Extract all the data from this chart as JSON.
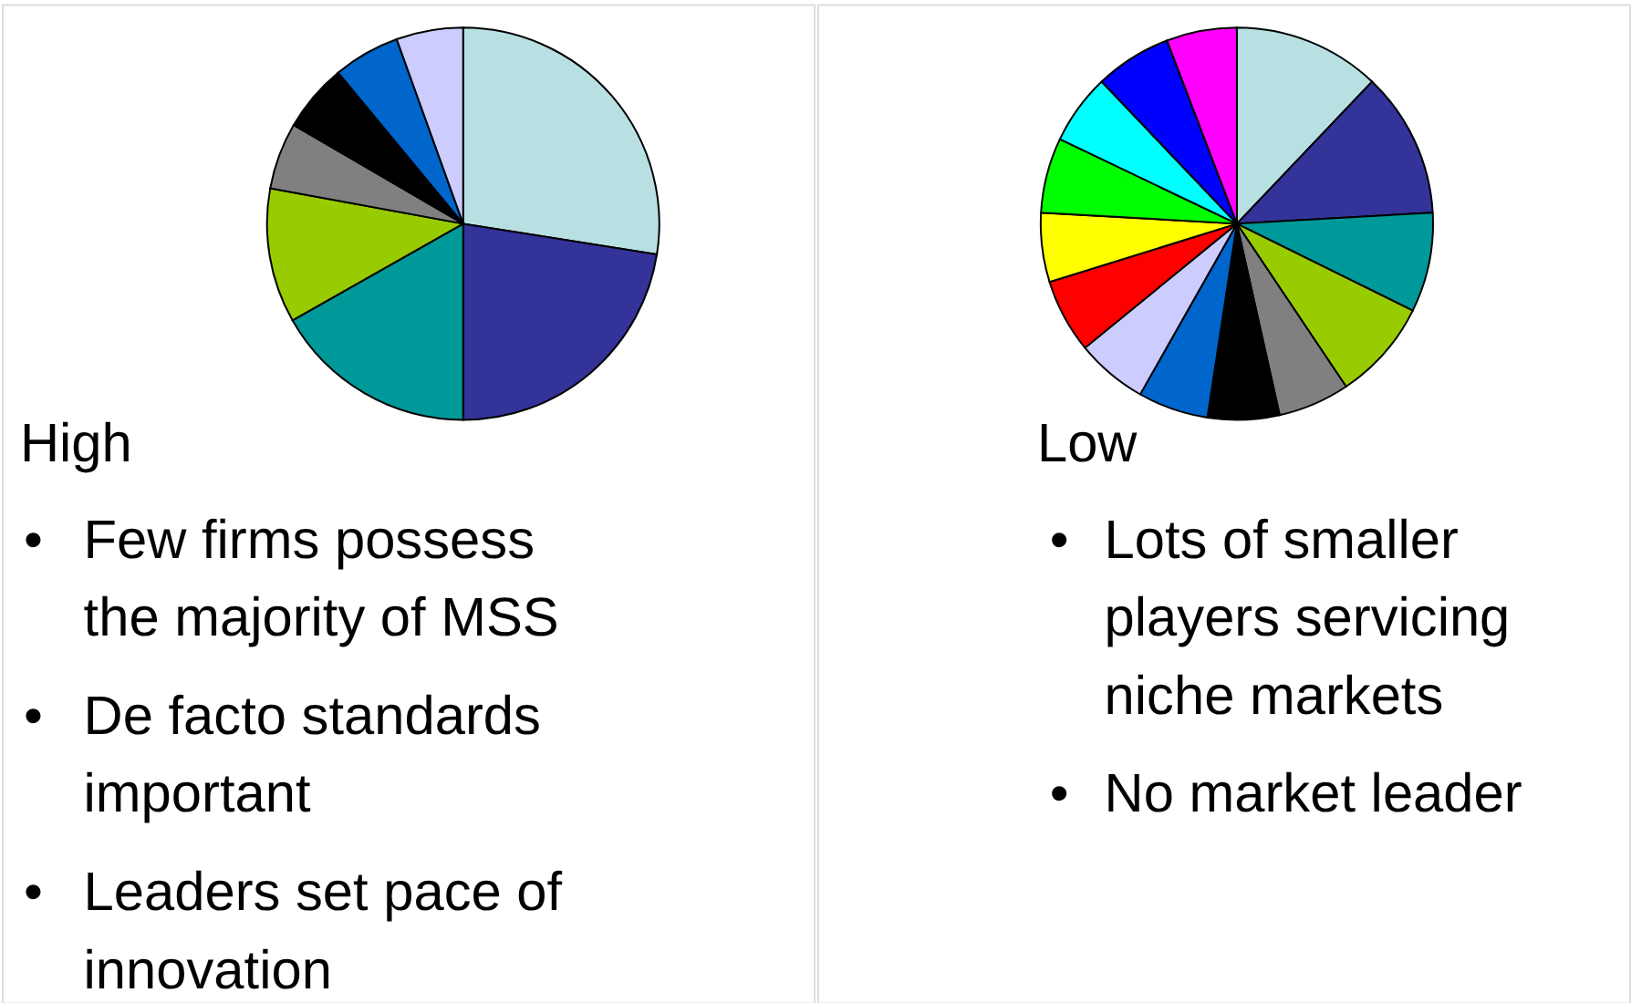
{
  "chart_data": [
    {
      "type": "pie",
      "title": "High",
      "categories": [
        null,
        null,
        null,
        null,
        null,
        null,
        null,
        null
      ],
      "values": [
        27.5,
        22.5,
        16.8,
        11.1,
        5.5,
        5.6,
        5.5,
        5.5
      ],
      "colors": [
        "#b8e0e3",
        "#333399",
        "#009999",
        "#99cc00",
        "#808080",
        "#000000",
        "#0066cc",
        "#ccccff"
      ],
      "legend": false,
      "annotations": [
        "• Few firms possess\nthe majority of MSS",
        "• De facto standards\nimportant",
        "• Leaders set pace of\ninnovation"
      ]
    },
    {
      "type": "pie",
      "title": "Low",
      "categories": [
        null,
        null,
        null,
        null,
        null,
        null,
        null,
        null,
        null,
        null,
        null,
        null,
        null,
        null
      ],
      "values": [
        12.1,
        12.0,
        8.2,
        8.3,
        5.9,
        5.9,
        5.8,
        5.9,
        6.1,
        5.7,
        6.2,
        5.8,
        6.3,
        5.8
      ],
      "colors": [
        "#b8e0e3",
        "#333399",
        "#009999",
        "#99cc00",
        "#808080",
        "#000000",
        "#0066cc",
        "#ccccff",
        "#ff0000",
        "#ffff00",
        "#00ff00",
        "#00ffff",
        "#0000ff",
        "#ff00ff"
      ],
      "legend": false,
      "annotations": [
        "• Lots of smaller\nplayers servicing\nniche markets",
        "• No market leader"
      ]
    }
  ]
}
